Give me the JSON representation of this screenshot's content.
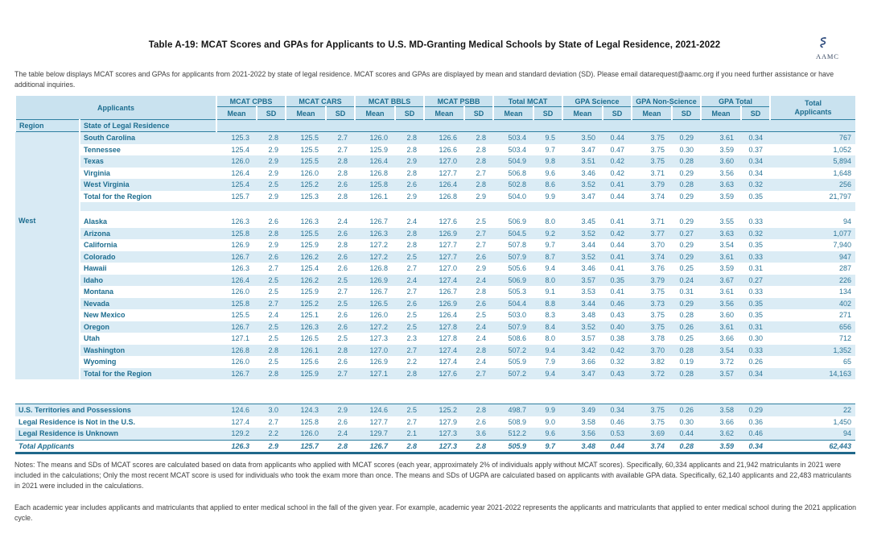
{
  "header": {
    "title": "Table A-19: MCAT Scores and GPAs for Applicants to U.S. MD-Granting Medical Schools by State of Legal Residence, 2021-2022",
    "logo_text": "AAMC",
    "intro": "The table below displays MCAT scores and GPAs for applicants from 2021-2022 by state of legal residence. MCAT scores and GPAs are displayed by mean and standard deviation (SD). Please email datarequest@aamc.org if you need further assistance or have additional inquiries."
  },
  "table": {
    "applicants_label": "Applicants",
    "groups": [
      "MCAT CPBS",
      "MCAT CARS",
      "MCAT BBLS",
      "MCAT PSBB",
      "Total MCAT",
      "GPA Science",
      "GPA Non-Science",
      "GPA Total"
    ],
    "mean_label": "Mean",
    "sd_label": "SD",
    "total_header": [
      "Total",
      "Applicants"
    ],
    "region_label": "Region",
    "state_label": "State of Legal Residence",
    "sections": [
      {
        "region": "",
        "rows": [
          {
            "state": "South Carolina",
            "shaded": true,
            "values": [
              "125.3",
              "2.8",
              "125.5",
              "2.7",
              "126.0",
              "2.8",
              "126.6",
              "2.8",
              "503.4",
              "9.5",
              "3.50",
              "0.44",
              "3.75",
              "0.29",
              "3.61",
              "0.34"
            ],
            "total": "767"
          },
          {
            "state": "Tennessee",
            "shaded": false,
            "values": [
              "125.4",
              "2.9",
              "125.5",
              "2.7",
              "125.9",
              "2.8",
              "126.6",
              "2.8",
              "503.4",
              "9.7",
              "3.47",
              "0.47",
              "3.75",
              "0.30",
              "3.59",
              "0.37"
            ],
            "total": "1,052"
          },
          {
            "state": "Texas",
            "shaded": true,
            "values": [
              "126.0",
              "2.9",
              "125.5",
              "2.8",
              "126.4",
              "2.9",
              "127.0",
              "2.8",
              "504.9",
              "9.8",
              "3.51",
              "0.42",
              "3.75",
              "0.28",
              "3.60",
              "0.34"
            ],
            "total": "5,894"
          },
          {
            "state": "Virginia",
            "shaded": false,
            "values": [
              "126.4",
              "2.9",
              "126.0",
              "2.8",
              "126.8",
              "2.8",
              "127.7",
              "2.7",
              "506.8",
              "9.6",
              "3.46",
              "0.42",
              "3.71",
              "0.29",
              "3.56",
              "0.34"
            ],
            "total": "1,648"
          },
          {
            "state": "West Virginia",
            "shaded": true,
            "values": [
              "125.4",
              "2.5",
              "125.2",
              "2.6",
              "125.8",
              "2.6",
              "126.4",
              "2.8",
              "502.8",
              "8.6",
              "3.52",
              "0.41",
              "3.79",
              "0.28",
              "3.63",
              "0.32"
            ],
            "total": "256"
          },
          {
            "state": "Total for the Region",
            "shaded": false,
            "values": [
              "125.7",
              "2.9",
              "125.3",
              "2.8",
              "126.1",
              "2.9",
              "126.8",
              "2.9",
              "504.0",
              "9.9",
              "3.47",
              "0.44",
              "3.74",
              "0.29",
              "3.59",
              "0.35"
            ],
            "total": "21,797"
          }
        ]
      },
      {
        "region": "West",
        "rows": [
          {
            "state": "Alaska",
            "shaded": false,
            "values": [
              "126.3",
              "2.6",
              "126.3",
              "2.4",
              "126.7",
              "2.4",
              "127.6",
              "2.5",
              "506.9",
              "8.0",
              "3.45",
              "0.41",
              "3.71",
              "0.29",
              "3.55",
              "0.33"
            ],
            "total": "94"
          },
          {
            "state": "Arizona",
            "shaded": true,
            "values": [
              "125.8",
              "2.8",
              "125.5",
              "2.6",
              "126.3",
              "2.8",
              "126.9",
              "2.7",
              "504.5",
              "9.2",
              "3.52",
              "0.42",
              "3.77",
              "0.27",
              "3.63",
              "0.32"
            ],
            "total": "1,077"
          },
          {
            "state": "California",
            "shaded": false,
            "values": [
              "126.9",
              "2.9",
              "125.9",
              "2.8",
              "127.2",
              "2.8",
              "127.7",
              "2.7",
              "507.8",
              "9.7",
              "3.44",
              "0.44",
              "3.70",
              "0.29",
              "3.54",
              "0.35"
            ],
            "total": "7,940"
          },
          {
            "state": "Colorado",
            "shaded": true,
            "values": [
              "126.7",
              "2.6",
              "126.2",
              "2.6",
              "127.2",
              "2.5",
              "127.7",
              "2.6",
              "507.9",
              "8.7",
              "3.52",
              "0.41",
              "3.74",
              "0.29",
              "3.61",
              "0.33"
            ],
            "total": "947"
          },
          {
            "state": "Hawaii",
            "shaded": false,
            "values": [
              "126.3",
              "2.7",
              "125.4",
              "2.6",
              "126.8",
              "2.7",
              "127.0",
              "2.9",
              "505.6",
              "9.4",
              "3.46",
              "0.41",
              "3.76",
              "0.25",
              "3.59",
              "0.31"
            ],
            "total": "287"
          },
          {
            "state": "Idaho",
            "shaded": true,
            "values": [
              "126.4",
              "2.5",
              "126.2",
              "2.5",
              "126.9",
              "2.4",
              "127.4",
              "2.4",
              "506.9",
              "8.0",
              "3.57",
              "0.35",
              "3.79",
              "0.24",
              "3.67",
              "0.27"
            ],
            "total": "226"
          },
          {
            "state": "Montana",
            "shaded": false,
            "values": [
              "126.0",
              "2.5",
              "125.9",
              "2.7",
              "126.7",
              "2.7",
              "126.7",
              "2.8",
              "505.3",
              "9.1",
              "3.53",
              "0.41",
              "3.75",
              "0.31",
              "3.61",
              "0.33"
            ],
            "total": "134"
          },
          {
            "state": "Nevada",
            "shaded": true,
            "values": [
              "125.8",
              "2.7",
              "125.2",
              "2.5",
              "126.5",
              "2.6",
              "126.9",
              "2.6",
              "504.4",
              "8.8",
              "3.44",
              "0.46",
              "3.73",
              "0.29",
              "3.56",
              "0.35"
            ],
            "total": "402"
          },
          {
            "state": "New Mexico",
            "shaded": false,
            "values": [
              "125.5",
              "2.4",
              "125.1",
              "2.6",
              "126.0",
              "2.5",
              "126.4",
              "2.5",
              "503.0",
              "8.3",
              "3.48",
              "0.43",
              "3.75",
              "0.28",
              "3.60",
              "0.35"
            ],
            "total": "271"
          },
          {
            "state": "Oregon",
            "shaded": true,
            "values": [
              "126.7",
              "2.5",
              "126.3",
              "2.6",
              "127.2",
              "2.5",
              "127.8",
              "2.4",
              "507.9",
              "8.4",
              "3.52",
              "0.40",
              "3.75",
              "0.26",
              "3.61",
              "0.31"
            ],
            "total": "656"
          },
          {
            "state": "Utah",
            "shaded": false,
            "values": [
              "127.1",
              "2.5",
              "126.5",
              "2.5",
              "127.3",
              "2.3",
              "127.8",
              "2.4",
              "508.6",
              "8.0",
              "3.57",
              "0.38",
              "3.78",
              "0.25",
              "3.66",
              "0.30"
            ],
            "total": "712"
          },
          {
            "state": "Washington",
            "shaded": true,
            "values": [
              "126.8",
              "2.8",
              "126.1",
              "2.8",
              "127.0",
              "2.7",
              "127.4",
              "2.8",
              "507.2",
              "9.4",
              "3.42",
              "0.42",
              "3.70",
              "0.28",
              "3.54",
              "0.33"
            ],
            "total": "1,352"
          },
          {
            "state": "Wyoming",
            "shaded": false,
            "values": [
              "126.0",
              "2.5",
              "125.6",
              "2.6",
              "126.9",
              "2.2",
              "127.4",
              "2.4",
              "505.9",
              "7.9",
              "3.66",
              "0.32",
              "3.82",
              "0.19",
              "3.72",
              "0.26"
            ],
            "total": "65"
          },
          {
            "state": "Total for the Region",
            "shaded": true,
            "values": [
              "126.7",
              "2.8",
              "125.9",
              "2.7",
              "127.1",
              "2.8",
              "127.6",
              "2.7",
              "507.2",
              "9.4",
              "3.47",
              "0.43",
              "3.72",
              "0.28",
              "3.57",
              "0.34"
            ],
            "total": "14,163"
          }
        ]
      }
    ],
    "footer_rows": [
      {
        "label": "U.S. Territories and Possessions",
        "shaded": true,
        "grand": false,
        "values": [
          "124.6",
          "3.0",
          "124.3",
          "2.9",
          "124.6",
          "2.5",
          "125.2",
          "2.8",
          "498.7",
          "9.9",
          "3.49",
          "0.34",
          "3.75",
          "0.26",
          "3.58",
          "0.29"
        ],
        "total": "22"
      },
      {
        "label": "Legal Residence is Not in the U.S.",
        "shaded": false,
        "grand": false,
        "values": [
          "127.4",
          "2.7",
          "125.8",
          "2.6",
          "127.7",
          "2.7",
          "127.9",
          "2.6",
          "508.9",
          "9.0",
          "3.58",
          "0.46",
          "3.75",
          "0.30",
          "3.66",
          "0.36"
        ],
        "total": "1,450"
      },
      {
        "label": "Legal Residence is Unknown",
        "shaded": true,
        "grand": false,
        "values": [
          "129.2",
          "2.2",
          "126.0",
          "2.4",
          "129.7",
          "2.1",
          "127.3",
          "3.6",
          "512.2",
          "9.6",
          "3.56",
          "0.53",
          "3.69",
          "0.44",
          "3.62",
          "0.46"
        ],
        "total": "94"
      },
      {
        "label": "Total Applicants",
        "shaded": false,
        "grand": true,
        "values": [
          "126.3",
          "2.9",
          "125.7",
          "2.8",
          "126.7",
          "2.8",
          "127.3",
          "2.8",
          "505.9",
          "9.7",
          "3.48",
          "0.44",
          "3.74",
          "0.28",
          "3.59",
          "0.34"
        ],
        "total": "62,443"
      }
    ]
  },
  "notes": {
    "p1": "Notes: The means and SDs of MCAT scores are calculated based on data from applicants who applied with MCAT scores (each year, approximately 2% of individuals apply without MCAT scores).  Specifically, 60,334 applicants and 21,942 matriculants in 2021 were included in the calculations;  Only the most recent MCAT score is used for individuals who took the exam more than once. The means and SDs of UGPA are calculated based on applicants with available GPA data. Specifically, 62,140 applicants and 22,483 matriculants in 2021 were included in the calculations.",
    "p2": "Each academic year includes applicants and matriculants that applied to enter medical school in the fall of the given year. For example, academic year 2021-2022 represents the applicants and matriculants that applied to enter medical school during the 2021 application cycle."
  }
}
